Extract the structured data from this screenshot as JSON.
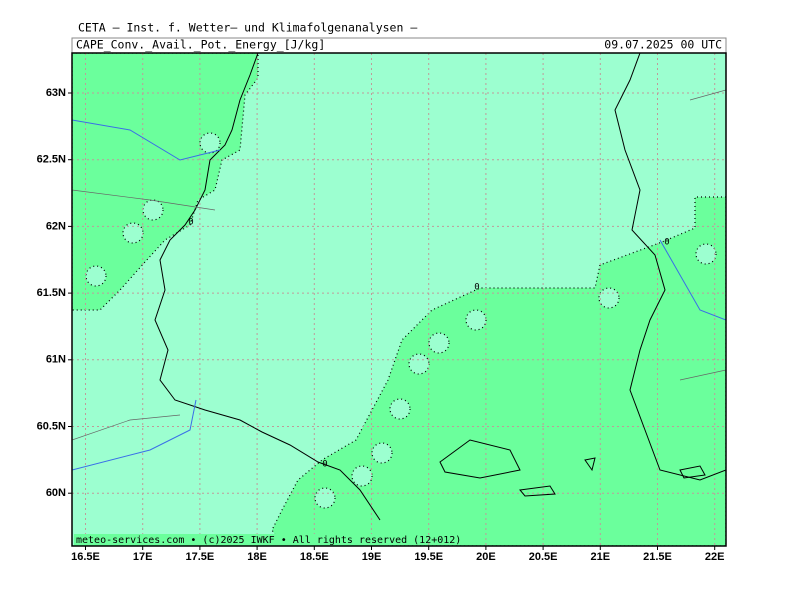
{
  "header": {
    "title": "CETA — Inst. f. Wetter— und Klimafolgenanalysen —",
    "field": "CAPE_Conv._Avail._Pot._Energy_[J/kg]",
    "date": "09.07.2025 00 UTC"
  },
  "axes": {
    "longitude_labels": [
      "16.5E",
      "17E",
      "17.5E",
      "18E",
      "18.5E",
      "19E",
      "19.5E",
      "20E",
      "20.5E",
      "21E",
      "21.5E",
      "22E"
    ],
    "latitude_labels": [
      "63N",
      "62.5N",
      "62N",
      "61.5N",
      "61N",
      "60.5N",
      "60N"
    ]
  },
  "contour_labels": [
    "0",
    "0",
    "0",
    "0"
  ],
  "footer": "meteo-services.com • (c)2025 IWKF • All rights reserved (12+012)"
}
